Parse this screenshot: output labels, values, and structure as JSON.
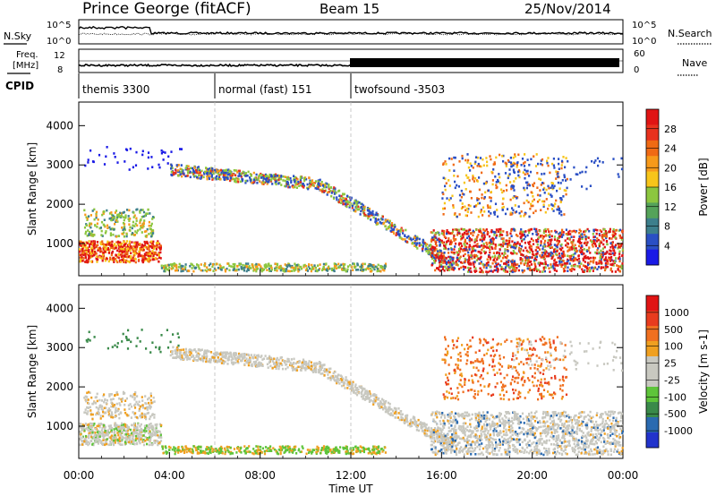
{
  "header": {
    "station": "Prince George (fitACF)",
    "beam": "Beam 15",
    "date": "25/Nov/2014"
  },
  "top_panels": {
    "nsky_label": "N.Sky",
    "nsearch_label": "N.Search",
    "freq_label_1": "Freq.",
    "freq_label_2": "[MHz]",
    "nave_label": "Nave",
    "cpid_label": "CPID",
    "noise_ticks_left": [
      "10^5",
      "10^0"
    ],
    "noise_ticks_right": [
      "10^5",
      "10^0"
    ],
    "freq_ticks": [
      "12",
      "8"
    ],
    "nave_ticks": [
      "60",
      "0"
    ]
  },
  "cpid_segments": [
    {
      "label": "themis 3300",
      "start_ut": 0,
      "end_ut": 6
    },
    {
      "label": "normal (fast) 151",
      "start_ut": 6,
      "end_ut": 12
    },
    {
      "label": "twofsound -3503",
      "start_ut": 12,
      "end_ut": 24
    }
  ],
  "chart_data": [
    {
      "type": "heatmap",
      "name": "power-panel",
      "ylabel": "Slant Range [km]",
      "xlabel": "Time UT",
      "xlim": [
        0,
        24
      ],
      "ylim": [
        180,
        4600
      ],
      "y_ticks": [
        "1000",
        "2000",
        "3000",
        "4000"
      ],
      "colorbar": {
        "label": "Power [dB]",
        "tick_labels": [
          "4",
          "8",
          "12",
          "16",
          "20",
          "24",
          "28"
        ],
        "colors": [
          "#1a1ae6",
          "#2a4fc4",
          "#3d7f8c",
          "#55a35a",
          "#8cc63f",
          "#f7c51a",
          "#f79a1a",
          "#f06a14",
          "#e8321e",
          "#e01414"
        ]
      }
    },
    {
      "type": "heatmap",
      "name": "velocity-panel",
      "ylabel": "Slant Range [km]",
      "xlabel": "Time UT",
      "xlim": [
        0,
        24
      ],
      "ylim": [
        180,
        4600
      ],
      "y_ticks": [
        "1000",
        "2000",
        "3000",
        "4000"
      ],
      "colorbar": {
        "label": "Velocity [m s-1]",
        "tick_labels": [
          "1000",
          "500",
          "100",
          "25",
          "-25",
          "-100",
          "-500",
          "-1000"
        ],
        "colors": [
          "#2233cc",
          "#2a6ab0",
          "#3a8a4a",
          "#5ec43a",
          "#c8c8c0",
          "#c8c8c0",
          "#f0a020",
          "#f07020",
          "#e83c1e",
          "#e01414"
        ]
      }
    }
  ],
  "x_axis": {
    "ticks": [
      "00:00",
      "04:00",
      "08:00",
      "12:00",
      "16:00",
      "20:00",
      "00:00"
    ],
    "label": "Time UT"
  }
}
